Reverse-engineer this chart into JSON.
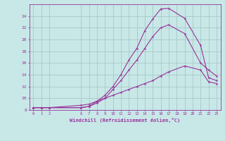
{
  "title": "",
  "xlabel": "Windchill (Refroidissement éolien,°C)",
  "ylabel": "",
  "bg_color": "#c8e8e8",
  "grid_color": "#a8c8c8",
  "line_color": "#993399",
  "xlim": [
    -0.5,
    23.5
  ],
  "ylim": [
    8,
    26
  ],
  "xticks": [
    0,
    1,
    2,
    6,
    7,
    8,
    9,
    10,
    11,
    12,
    13,
    14,
    15,
    16,
    17,
    18,
    19,
    20,
    21,
    22,
    23
  ],
  "yticks": [
    8,
    10,
    12,
    14,
    16,
    18,
    20,
    22,
    24
  ],
  "line1_x": [
    0,
    1,
    2,
    6,
    7,
    8,
    9,
    10,
    11,
    12,
    13,
    14,
    15,
    16,
    17,
    19,
    21,
    22,
    23
  ],
  "line1_y": [
    8.4,
    8.4,
    8.4,
    8.4,
    8.6,
    9.5,
    10.5,
    12.0,
    14.0,
    16.5,
    18.5,
    21.5,
    23.5,
    25.2,
    25.3,
    23.6,
    19.0,
    13.5,
    13.0
  ],
  "line2_x": [
    0,
    1,
    2,
    6,
    7,
    8,
    9,
    10,
    11,
    12,
    13,
    14,
    15,
    16,
    17,
    19,
    21,
    22,
    23
  ],
  "line2_y": [
    8.4,
    8.4,
    8.4,
    8.4,
    8.6,
    9.2,
    10.0,
    11.5,
    13.0,
    14.8,
    16.5,
    18.5,
    20.5,
    22.0,
    22.5,
    21.0,
    16.0,
    14.8,
    13.8
  ],
  "line3_x": [
    0,
    1,
    2,
    6,
    7,
    8,
    9,
    10,
    11,
    12,
    13,
    14,
    15,
    16,
    17,
    19,
    21,
    22,
    23
  ],
  "line3_y": [
    8.4,
    8.4,
    8.4,
    8.8,
    9.0,
    9.5,
    10.0,
    10.5,
    11.0,
    11.5,
    12.0,
    12.5,
    13.0,
    13.8,
    14.5,
    15.5,
    14.8,
    12.8,
    12.5
  ]
}
